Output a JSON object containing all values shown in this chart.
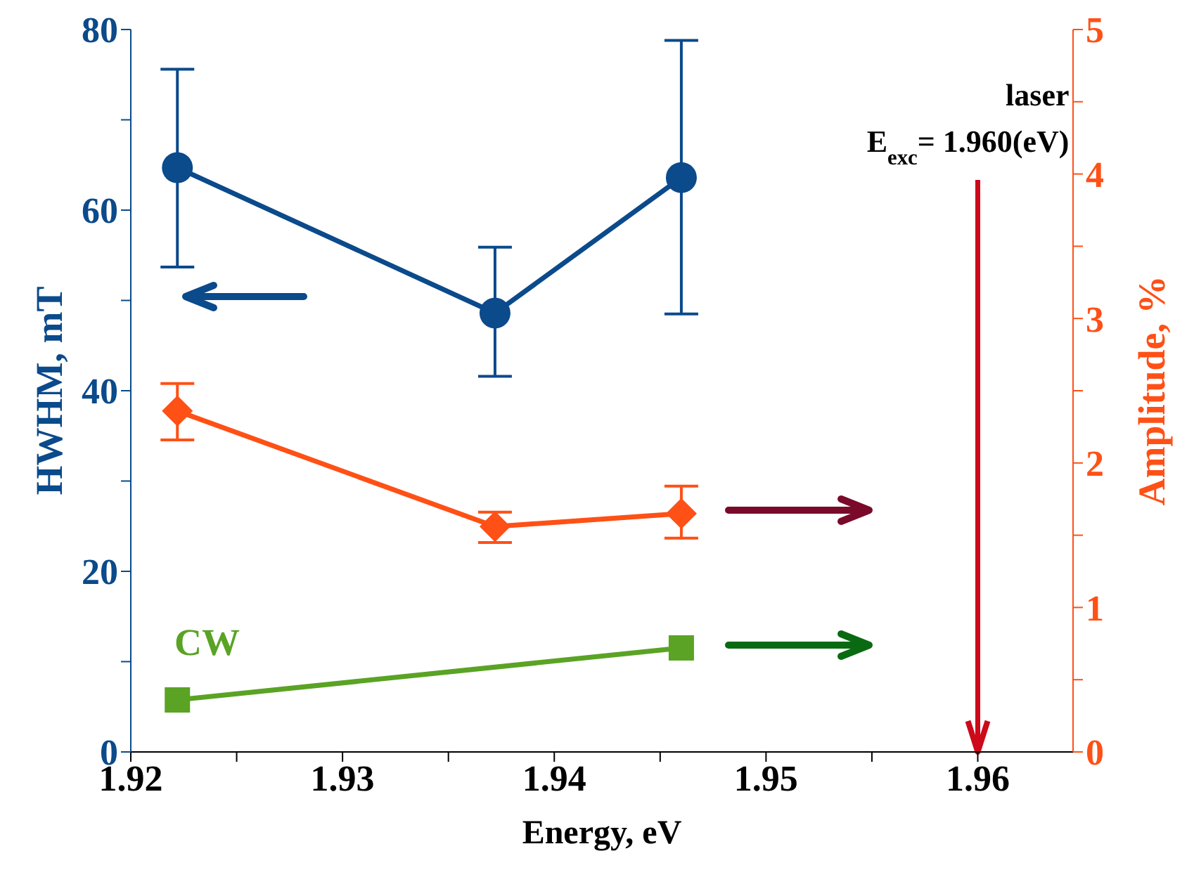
{
  "chart_data": {
    "type": "line",
    "xlabel": "Energy, eV",
    "ylabel": "HWHM, mT",
    "y2label": "Amplitude, %",
    "xlim": [
      1.92,
      1.9645
    ],
    "xticks": [
      1.92,
      {
        "value": 1.925,
        "label": null
      },
      1.93,
      {
        "value": 1.935,
        "label": null
      },
      1.94,
      {
        "value": 1.945,
        "label": null
      },
      1.95,
      {
        "value": 1.955,
        "label": null
      },
      1.96
    ],
    "ylim": [
      0,
      80
    ],
    "yticks": [
      0,
      {
        "value": 10,
        "label": null
      },
      20,
      {
        "value": 30,
        "label": null
      },
      40,
      {
        "value": 50,
        "label": null
      },
      60,
      {
        "value": 70,
        "label": null
      },
      80
    ],
    "y2lim": [
      0,
      5
    ],
    "y2ticks": [
      0,
      {
        "value": 0.5,
        "label": null
      },
      1,
      {
        "value": 1.5,
        "label": null
      },
      2,
      {
        "value": 2.5,
        "label": null
      },
      3,
      {
        "value": 3.5,
        "label": null
      },
      4,
      {
        "value": 4.5,
        "label": null
      },
      5
    ],
    "grid": false,
    "legend": false,
    "series": [
      {
        "color": "#0b4a8b",
        "marker": "circle",
        "x": [
          1.9222,
          1.9372,
          1.946
        ],
        "values": [
          64.7,
          48.6,
          63.6
        ],
        "errors": [
          [
            53.7,
            75.6
          ],
          [
            41.6,
            55.9
          ],
          [
            48.5,
            78.8
          ]
        ]
      },
      {
        "color": "#ff5016",
        "marker": "diamond",
        "axis": "y2",
        "x": [
          1.9222,
          1.9372,
          1.946
        ],
        "values": [
          2.36,
          1.56,
          1.65
        ],
        "errors": [
          [
            2.16,
            2.55
          ],
          [
            1.45,
            1.66
          ],
          [
            1.48,
            1.84
          ]
        ]
      },
      {
        "name": "CW",
        "color": "#5aa324",
        "marker": "square",
        "axis": "y2",
        "x": [
          1.9222,
          1.946
        ],
        "values": [
          0.36,
          0.72
        ]
      }
    ],
    "ref_lines": [
      {
        "axis": "x",
        "value": 1.96,
        "label": "laser\nE$_{exc}$= 1.960(eV)",
        "color": "#cc0a1a"
      }
    ]
  }
}
